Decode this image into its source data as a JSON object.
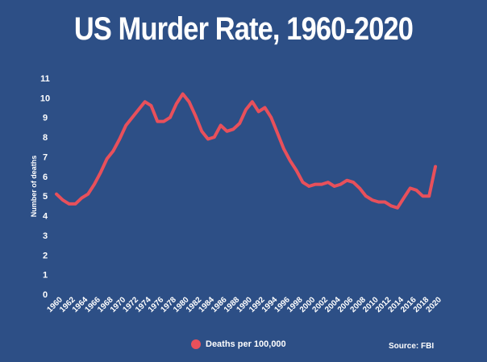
{
  "chart_data": {
    "type": "line",
    "title": "US Murder Rate, 1960-2020",
    "ylabel": "Number of deaths",
    "xlabel": "",
    "ylim": [
      0,
      11
    ],
    "yticks": [
      "0",
      "1",
      "2",
      "3",
      "4",
      "5",
      "6",
      "7",
      "8",
      "9",
      "10",
      "11"
    ],
    "xlim": [
      1960,
      2020
    ],
    "xticks": [
      "1960",
      "1962",
      "1964",
      "1966",
      "1968",
      "1970",
      "1972",
      "1974",
      "1976",
      "1978",
      "1980",
      "1982",
      "1984",
      "1986",
      "1988",
      "1990",
      "1992",
      "1994",
      "1996",
      "1998",
      "2000",
      "2002",
      "2004",
      "2006",
      "2008",
      "2010",
      "2012",
      "2014",
      "2016",
      "2018",
      "2020"
    ],
    "series": [
      {
        "name": "Deaths per 100,000",
        "color": "#e8505b",
        "x": [
          1960,
          1961,
          1962,
          1963,
          1964,
          1965,
          1966,
          1967,
          1968,
          1969,
          1970,
          1971,
          1972,
          1973,
          1974,
          1975,
          1976,
          1977,
          1978,
          1979,
          1980,
          1981,
          1982,
          1983,
          1984,
          1985,
          1986,
          1987,
          1988,
          1989,
          1990,
          1991,
          1992,
          1993,
          1994,
          1995,
          1996,
          1997,
          1998,
          1999,
          2000,
          2001,
          2002,
          2003,
          2004,
          2005,
          2006,
          2007,
          2008,
          2009,
          2010,
          2011,
          2012,
          2013,
          2014,
          2015,
          2016,
          2017,
          2018,
          2019,
          2020
        ],
        "values": [
          5.1,
          4.8,
          4.6,
          4.6,
          4.9,
          5.1,
          5.6,
          6.2,
          6.9,
          7.3,
          7.9,
          8.6,
          9.0,
          9.4,
          9.8,
          9.6,
          8.8,
          8.8,
          9.0,
          9.7,
          10.2,
          9.8,
          9.1,
          8.3,
          7.9,
          8.0,
          8.6,
          8.3,
          8.4,
          8.7,
          9.4,
          9.8,
          9.3,
          9.5,
          9.0,
          8.2,
          7.4,
          6.8,
          6.3,
          5.7,
          5.5,
          5.6,
          5.6,
          5.7,
          5.5,
          5.6,
          5.8,
          5.7,
          5.4,
          5.0,
          4.8,
          4.7,
          4.7,
          4.5,
          4.4,
          4.9,
          5.4,
          5.3,
          5.0,
          5.0,
          6.5
        ]
      }
    ],
    "legend_position": "bottom-center",
    "grid": false,
    "source": "Source: FBI"
  }
}
